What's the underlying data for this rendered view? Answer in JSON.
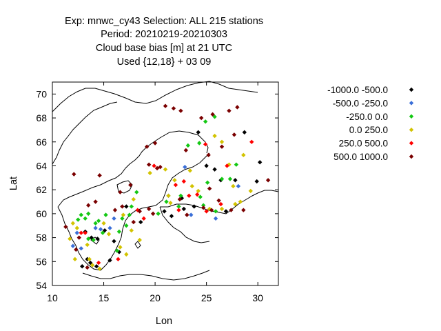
{
  "chart_data": {
    "type": "scatter",
    "title_lines": [
      "Exp: mnwc_cy43   Selection: ALL     215 stations",
      "Period: 20210219-20210303",
      "Cloud base bias [m] at  21 UTC",
      "Used {12,18} + 03 09"
    ],
    "xlabel": "Lon",
    "ylabel": "Lat",
    "xlim": [
      10,
      32
    ],
    "ylim": [
      54,
      71
    ],
    "xticks": [
      "10",
      "15",
      "20",
      "25",
      "30"
    ],
    "yticks": [
      "54",
      "56",
      "58",
      "60",
      "62",
      "64",
      "66",
      "68",
      "70"
    ],
    "grid": false,
    "legend_position": "right",
    "series": [
      {
        "name": "-1000.0 -500.0",
        "color": "#000000",
        "points": [
          [
            12.9,
            55.6
          ],
          [
            13.4,
            56.2
          ],
          [
            13.7,
            55.9
          ],
          [
            14.3,
            55.6
          ],
          [
            13.8,
            58.0
          ],
          [
            14.4,
            57.9
          ],
          [
            15.1,
            58.6
          ],
          [
            15.6,
            56.1
          ],
          [
            16.5,
            56.8
          ],
          [
            16.0,
            57.7
          ],
          [
            18.6,
            59.3
          ],
          [
            21.6,
            59.8
          ],
          [
            22.6,
            61.3
          ],
          [
            22.8,
            60.4
          ],
          [
            23.8,
            60.6
          ],
          [
            24.2,
            66.8
          ],
          [
            25.0,
            64.0
          ],
          [
            25.8,
            63.7
          ],
          [
            26.4,
            62.8
          ],
          [
            26.9,
            60.2
          ],
          [
            27.8,
            62.8
          ],
          [
            28.7,
            66.8
          ],
          [
            29.9,
            62.7
          ],
          [
            30.2,
            64.3
          ],
          [
            13.2,
            58.5
          ],
          [
            17.2,
            60.6
          ],
          [
            20.9,
            60.2
          ]
        ]
      },
      {
        "name": "-500.0 -250.0",
        "color": "#3a6fd8",
        "points": [
          [
            12.0,
            57.3
          ],
          [
            12.8,
            57.1
          ],
          [
            14.2,
            58.8
          ],
          [
            14.7,
            58.7
          ],
          [
            15.6,
            58.8
          ],
          [
            16.0,
            59.6
          ],
          [
            21.3,
            61.5
          ],
          [
            22.9,
            63.9
          ],
          [
            25.9,
            59.6
          ],
          [
            28.1,
            62.3
          ],
          [
            23.5,
            59.9
          ],
          [
            12.4,
            58.4
          ]
        ]
      },
      {
        "name": "-250.0 0.0",
        "color": "#14c814",
        "points": [
          [
            12.5,
            59.5
          ],
          [
            12.8,
            59.9
          ],
          [
            13.2,
            59.6
          ],
          [
            13.5,
            60.0
          ],
          [
            14.2,
            59.2
          ],
          [
            14.5,
            59.4
          ],
          [
            15.2,
            59.9
          ],
          [
            14.9,
            58.4
          ],
          [
            13.5,
            57.9
          ],
          [
            14.0,
            57.8
          ],
          [
            16.5,
            58.5
          ],
          [
            16.8,
            59.6
          ],
          [
            17.5,
            59.9
          ],
          [
            17.7,
            60.6
          ],
          [
            17.2,
            59.0
          ],
          [
            18.2,
            61.8
          ],
          [
            20.3,
            60.0
          ],
          [
            21.1,
            61.0
          ],
          [
            22.5,
            61.5
          ],
          [
            23.2,
            65.7
          ],
          [
            24.3,
            65.9
          ],
          [
            24.9,
            67.7
          ],
          [
            25.8,
            68.1
          ],
          [
            24.4,
            61.4
          ],
          [
            25.1,
            62.6
          ],
          [
            25.9,
            60.2
          ],
          [
            26.5,
            62.9
          ],
          [
            27.3,
            62.9
          ],
          [
            27.9,
            64.1
          ],
          [
            24.7,
            60.7
          ],
          [
            22.3,
            60.6
          ],
          [
            16.3,
            56.9
          ]
        ]
      },
      {
        "name": "0.0 250.0",
        "color": "#d2c300",
        "points": [
          [
            12.0,
            59.2
          ],
          [
            12.4,
            58.8
          ],
          [
            11.7,
            57.9
          ],
          [
            12.2,
            56.2
          ],
          [
            13.6,
            56.2
          ],
          [
            13.9,
            55.7
          ],
          [
            14.6,
            55.4
          ],
          [
            15.0,
            59.2
          ],
          [
            15.5,
            58.3
          ],
          [
            16.6,
            57.2
          ],
          [
            17.2,
            56.6
          ],
          [
            17.7,
            58.6
          ],
          [
            18.5,
            57.8
          ],
          [
            19.5,
            63.4
          ],
          [
            21.0,
            63.7
          ],
          [
            21.5,
            60.9
          ],
          [
            21.9,
            62.8
          ],
          [
            23.4,
            63.6
          ],
          [
            23.6,
            62.3
          ],
          [
            24.2,
            61.9
          ],
          [
            25.8,
            66.5
          ],
          [
            26.5,
            66.0
          ],
          [
            27.2,
            64.1
          ],
          [
            27.6,
            62.3
          ],
          [
            28.6,
            64.9
          ],
          [
            29.3,
            61.9
          ],
          [
            28.3,
            61.0
          ],
          [
            27.8,
            60.8
          ],
          [
            26.5,
            60.4
          ],
          [
            25.3,
            60.4
          ],
          [
            21.3,
            61.5
          ],
          [
            17.9,
            61.2
          ],
          [
            16.9,
            59.9
          ],
          [
            13.4,
            57.4
          ]
        ]
      },
      {
        "name": "250.0 500.0",
        "color": "#ff0000",
        "points": [
          [
            12.8,
            58.4
          ],
          [
            13.2,
            58.4
          ],
          [
            14.5,
            55.9
          ],
          [
            16.4,
            56.2
          ],
          [
            18.9,
            59.6
          ],
          [
            19.9,
            64.0
          ],
          [
            20.2,
            63.8
          ],
          [
            22.0,
            62.4
          ],
          [
            22.8,
            62.7
          ],
          [
            23.3,
            61.5
          ],
          [
            24.1,
            61.6
          ],
          [
            24.9,
            65.8
          ],
          [
            26.4,
            60.8
          ],
          [
            25.0,
            60.2
          ],
          [
            27.0,
            64.0
          ],
          [
            29.4,
            66.0
          ],
          [
            18.3,
            60.3
          ],
          [
            22.3,
            60.3
          ]
        ]
      },
      {
        "name": "500.0 1000.0",
        "color": "#7a0000",
        "points": [
          [
            12.1,
            63.3
          ],
          [
            14.6,
            63.2
          ],
          [
            13.5,
            60.7
          ],
          [
            14.2,
            61.0
          ],
          [
            11.3,
            58.9
          ],
          [
            12.6,
            58.0
          ],
          [
            12.3,
            57.0
          ],
          [
            13.4,
            55.5
          ],
          [
            16.1,
            60.3
          ],
          [
            16.8,
            60.6
          ],
          [
            18.5,
            60.2
          ],
          [
            16.6,
            61.8
          ],
          [
            17.6,
            62.4
          ],
          [
            19.2,
            65.6
          ],
          [
            19.4,
            64.1
          ],
          [
            20.0,
            65.9
          ],
          [
            20.2,
            63.8
          ],
          [
            20.5,
            63.9
          ],
          [
            21.0,
            69.0
          ],
          [
            21.8,
            68.8
          ],
          [
            22.5,
            68.6
          ],
          [
            23.0,
            65.3
          ],
          [
            24.5,
            68.0
          ],
          [
            25.2,
            64.9
          ],
          [
            25.6,
            68.3
          ],
          [
            26.5,
            65.6
          ],
          [
            27.2,
            68.6
          ],
          [
            28.0,
            68.9
          ],
          [
            27.7,
            66.6
          ],
          [
            28.6,
            60.3
          ],
          [
            27.4,
            60.3
          ],
          [
            26.2,
            61.1
          ],
          [
            25.5,
            60.3
          ],
          [
            25.3,
            62.1
          ],
          [
            24.7,
            60.5
          ],
          [
            23.1,
            59.9
          ],
          [
            22.4,
            61.2
          ],
          [
            31.0,
            62.8
          ],
          [
            19.4,
            60.4
          ],
          [
            19.8,
            60.0
          ],
          [
            17.9,
            59.3
          ]
        ]
      }
    ]
  }
}
